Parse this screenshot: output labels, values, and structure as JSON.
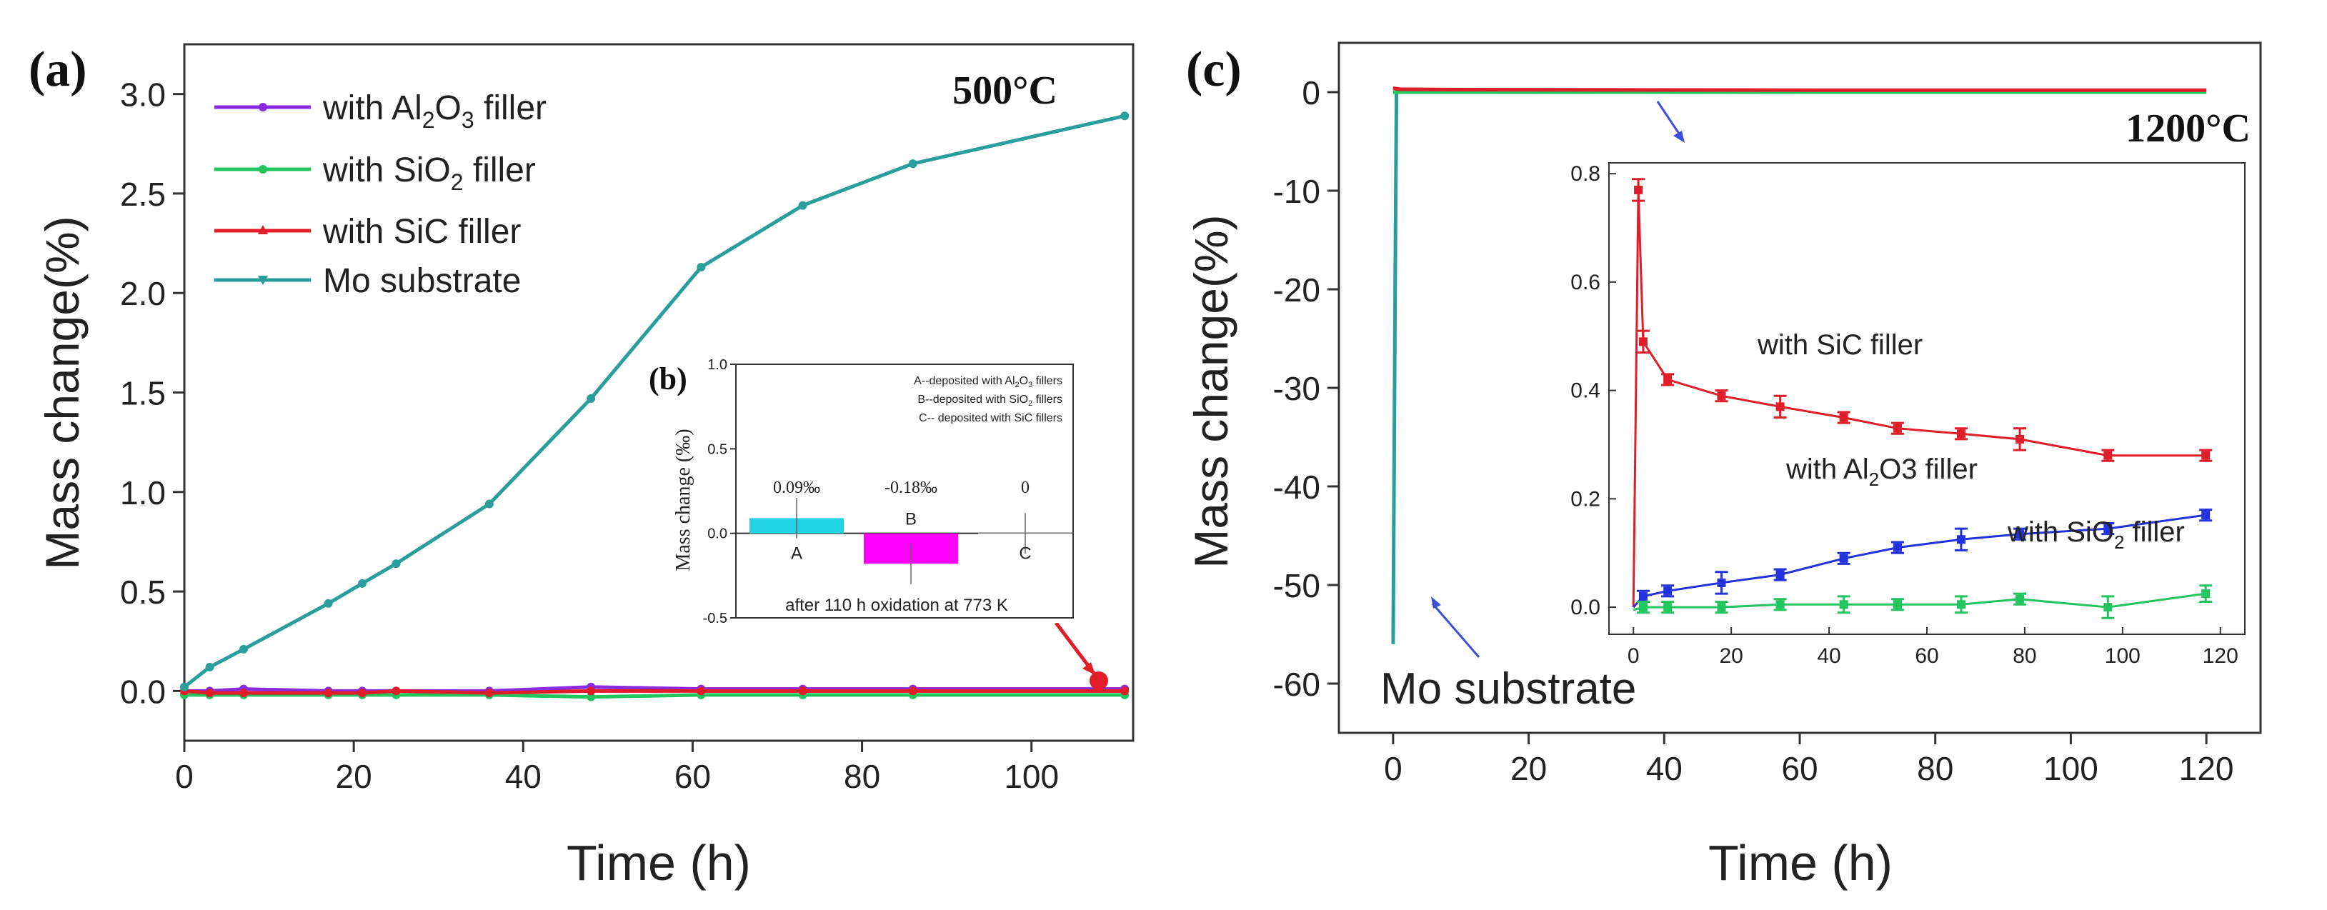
{
  "chart_data": [
    {
      "id": "a",
      "panel_label": "(a)",
      "type": "line",
      "temperature": "500°C",
      "xlabel": "Time (h)",
      "ylabel": "Mass change(%)",
      "xlim": [
        0,
        112
      ],
      "ylim": [
        -0.25,
        3.25
      ],
      "xticks": [
        "0",
        "20",
        "40",
        "60",
        "80",
        "100"
      ],
      "yticks": [
        "0.0",
        "0.5",
        "1.0",
        "1.5",
        "2.0",
        "2.5",
        "3.0"
      ],
      "legend": [
        {
          "pre": "with Al",
          "sub": "2",
          "mid": "O",
          "sub2": "3",
          "post": " filler"
        },
        {
          "pre": "with SiO",
          "sub": "2",
          "mid": " filler",
          "sub2": "",
          "post": ""
        },
        {
          "pre": "with SiC filler",
          "sub": "",
          "mid": "",
          "sub2": "",
          "post": ""
        },
        {
          "pre": "Mo substrate",
          "sub": "",
          "mid": "",
          "sub2": "",
          "post": ""
        }
      ],
      "series": [
        {
          "name": "with Al2O3 filler",
          "color": "#8a2be2",
          "x": [
            0,
            3,
            7,
            17,
            21,
            25,
            36,
            48,
            61,
            73,
            86,
            111
          ],
          "y": [
            0.0,
            0.0,
            0.01,
            0.0,
            0.0,
            0.0,
            0.0,
            0.02,
            0.01,
            0.01,
            0.01,
            0.01
          ]
        },
        {
          "name": "with SiO2 filler",
          "color": "#22c55e",
          "x": [
            0,
            3,
            7,
            17,
            21,
            25,
            36,
            48,
            61,
            73,
            86,
            111
          ],
          "y": [
            -0.02,
            -0.02,
            -0.02,
            -0.02,
            -0.02,
            -0.02,
            -0.02,
            -0.03,
            -0.02,
            -0.02,
            -0.02,
            -0.02
          ]
        },
        {
          "name": "with SiC filler",
          "color": "#e11d2a",
          "x": [
            0,
            3,
            7,
            17,
            21,
            25,
            36,
            48,
            61,
            73,
            86,
            111
          ],
          "y": [
            0.0,
            -0.01,
            -0.01,
            -0.01,
            -0.01,
            0.0,
            -0.01,
            0.0,
            0.0,
            0.0,
            0.0,
            0.0
          ]
        },
        {
          "name": "Mo substrate",
          "color": "#2a9d9d",
          "x": [
            0,
            3,
            7,
            17,
            21,
            25,
            36,
            48,
            61,
            73,
            86,
            111
          ],
          "y": [
            0.02,
            0.12,
            0.21,
            0.44,
            0.54,
            0.64,
            0.94,
            1.47,
            2.13,
            2.44,
            2.65,
            2.89
          ]
        }
      ]
    },
    {
      "id": "b",
      "panel_label": "(b)",
      "type": "bar",
      "ylabel": "Mass change (‰)",
      "ylim": [
        -0.5,
        1.0
      ],
      "yticks": [
        "1.0",
        "0.5",
        "0.0",
        "-0.5"
      ],
      "categories": [
        "A",
        "B",
        "C"
      ],
      "values": [
        0.09,
        -0.18,
        0.0
      ],
      "bar_colors": [
        "#22d3e6",
        "#ff00ff",
        "#ffffff"
      ],
      "value_labels": [
        "0.09‰",
        "-0.18‰",
        "0"
      ],
      "notes": [
        {
          "pre": "A--deposited with Al",
          "sub": "2",
          "mid": "O",
          "sub2": "3",
          "post": " fillers"
        },
        {
          "pre": "B--deposited with SiO",
          "sub": "2",
          "mid": " fillers",
          "sub2": "",
          "post": ""
        },
        {
          "pre": "C-- deposited with SiC fillers",
          "sub": "",
          "mid": "",
          "sub2": "",
          "post": ""
        }
      ],
      "caption": "after 110 h oxidation at 773 K"
    },
    {
      "id": "c",
      "panel_label": "(c)",
      "type": "line",
      "temperature": "1200°C",
      "xlabel": "Time (h)",
      "ylabel": "Mass change(%)",
      "xlim": [
        -8,
        128
      ],
      "ylim": [
        -65,
        5
      ],
      "xticks": [
        "0",
        "20",
        "40",
        "60",
        "80",
        "100",
        "120"
      ],
      "yticks": [
        "0",
        "-10",
        "-20",
        "-30",
        "-40",
        "-50",
        "-60"
      ],
      "annotation": "Mo substrate",
      "series": [
        {
          "name": "Mo substrate",
          "color": "#2a9d9d",
          "x": [
            0,
            0.3,
            0.5,
            1,
            120
          ],
          "y": [
            -56,
            -20,
            0,
            0,
            0
          ]
        },
        {
          "name": "with SiO2 filler",
          "color": "#22c55e",
          "x": [
            0,
            1,
            120
          ],
          "y": [
            0,
            0,
            0
          ]
        },
        {
          "name": "with SiC filler",
          "color": "#e11d2a",
          "x": [
            0,
            1,
            12,
            62,
            120
          ],
          "y": [
            0.4,
            0.3,
            0.25,
            0.2,
            0.2
          ]
        }
      ]
    },
    {
      "id": "c-inset",
      "type": "line",
      "xlim": [
        -5,
        125
      ],
      "ylim": [
        -0.05,
        0.82
      ],
      "xticks": [
        "0",
        "20",
        "40",
        "60",
        "80",
        "100",
        "120"
      ],
      "yticks": [
        "0.0",
        "0.2",
        "0.4",
        "0.6",
        "0.8"
      ],
      "labels": [
        {
          "pre": "with SiC filler",
          "sub": "",
          "mid": "",
          "sub2": "",
          "post": ""
        },
        {
          "pre": "with Al",
          "sub": "2",
          "mid": "O3 filler",
          "sub2": "",
          "post": ""
        },
        {
          "pre": "with SiO",
          "sub": "2",
          "mid": " filler",
          "sub2": "",
          "post": ""
        }
      ],
      "series": [
        {
          "name": "with SiC filler",
          "color": "#e01e2a",
          "x": [
            0,
            1,
            2,
            7,
            18,
            30,
            43,
            54,
            67,
            79,
            97,
            117
          ],
          "y": [
            0.0,
            0.77,
            0.49,
            0.42,
            0.39,
            0.37,
            0.35,
            0.33,
            0.32,
            0.31,
            0.28,
            0.28
          ],
          "err": [
            0,
            0.02,
            0.02,
            0.01,
            0.01,
            0.02,
            0.01,
            0.01,
            0.01,
            0.02,
            0.01,
            0.01
          ]
        },
        {
          "name": "with Al2O3 filler",
          "color": "#2233dd",
          "x": [
            0,
            2,
            7,
            18,
            30,
            43,
            54,
            67,
            79,
            97,
            117
          ],
          "y": [
            0.0,
            0.02,
            0.03,
            0.045,
            0.06,
            0.09,
            0.11,
            0.125,
            0.135,
            0.145,
            0.17
          ],
          "err": [
            0,
            0.01,
            0.01,
            0.02,
            0.01,
            0.01,
            0.01,
            0.02,
            0.01,
            0.01,
            0.01
          ]
        },
        {
          "name": "with SiO2 filler",
          "color": "#22c55e",
          "x": [
            0,
            2,
            7,
            18,
            30,
            43,
            54,
            67,
            79,
            97,
            117
          ],
          "y": [
            -0.005,
            0.0,
            0.0,
            0.0,
            0.005,
            0.005,
            0.005,
            0.005,
            0.015,
            0.0,
            0.025
          ],
          "err": [
            0,
            0.01,
            0.01,
            0.01,
            0.01,
            0.015,
            0.01,
            0.015,
            0.01,
            0.02,
            0.015
          ]
        }
      ]
    }
  ]
}
